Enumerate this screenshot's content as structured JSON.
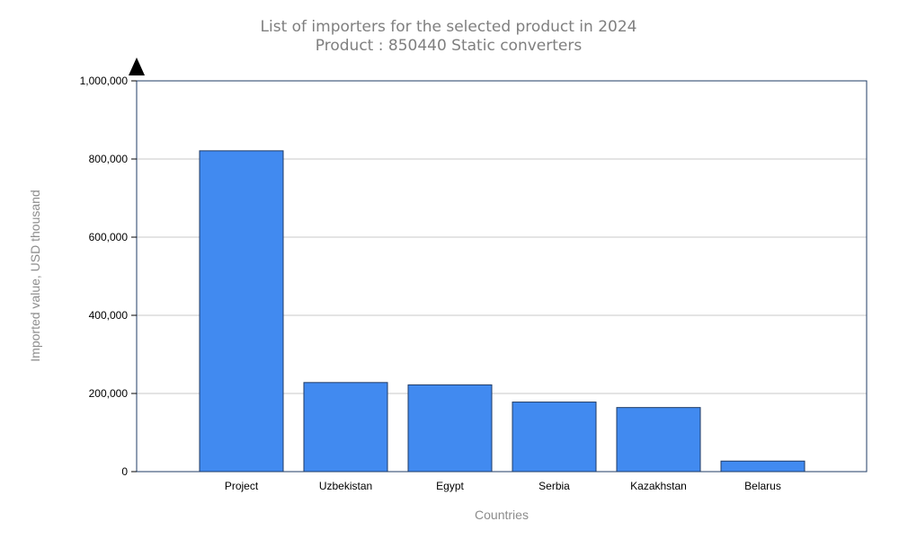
{
  "chart_data": {
    "type": "bar",
    "title": "List of importers for the selected product in 2024",
    "subtitle": "Product : 850440 Static converters",
    "xlabel": "Countries",
    "ylabel": "Imported value, USD thousand",
    "categories": [
      "Project",
      "Uzbekistan",
      "Egypt",
      "Serbia",
      "Kazakhstan",
      "Belarus"
    ],
    "values": [
      821000,
      228000,
      222000,
      178000,
      164000,
      27000
    ],
    "ylim": [
      0,
      1000000
    ],
    "yticks": [
      0,
      200000,
      400000,
      600000,
      800000,
      1000000
    ],
    "ytick_labels": [
      "0",
      "200,000",
      "400,000",
      "600,000",
      "800,000",
      "1,000,000"
    ],
    "grid": true,
    "colors": {
      "bar": "#418af0",
      "bar_border": "#1f3b66",
      "grid": "#c8c8c8",
      "frame": "#1f3b66"
    }
  }
}
